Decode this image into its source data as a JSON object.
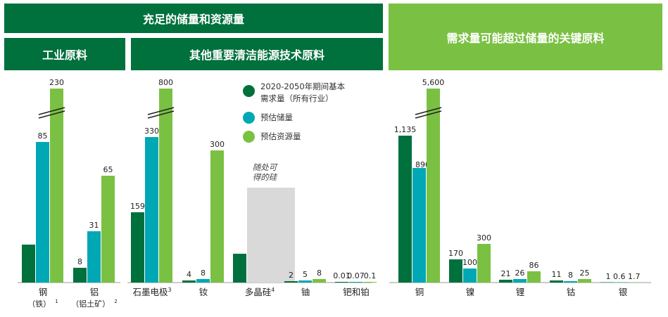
{
  "headers": {
    "top_left": "充足的储量和资源量",
    "industrial": "工业原料",
    "clean_energy": "其他重要清洁能源技术原料",
    "right": "需求量可能超过储量的关键原料"
  },
  "colors": {
    "header_dark": "#00703c",
    "header_light": "#7ac143",
    "demand": "#00703c",
    "reserves": "#00a7b5",
    "resources": "#7ac143",
    "silicon_note_box": "#d9d9d9"
  },
  "legend": [
    {
      "label_line1": "2020-2050年期间基本",
      "label_line2": "需求量（所有行业）",
      "color": "#00703c"
    },
    {
      "label_line1": "预估储量",
      "label_line2": "",
      "color": "#00a7b5"
    },
    {
      "label_line1": "预估资源量",
      "label_line2": "",
      "color": "#7ac143"
    }
  ],
  "chart_data": {
    "type": "bar",
    "series_names": [
      "2020-2050年期间基本需求量（所有行业）",
      "预估储量",
      "预估资源量"
    ],
    "groups": [
      {
        "category": "钢",
        "sub": "（铁）",
        "sup": "1",
        "values": [
          null,
          85,
          230
        ],
        "labels": [
          "",
          "85",
          "230"
        ],
        "demand_level": 0.19,
        "broken": true
      },
      {
        "category": "铝",
        "sub": "（铝土矿）",
        "sup": "2",
        "values": [
          8,
          31,
          65
        ],
        "labels": [
          "8",
          "31",
          "65"
        ]
      },
      {
        "category": "石墨电极",
        "sub": "",
        "sup": "3",
        "values": [
          159,
          330,
          800
        ],
        "labels": [
          "159",
          "330",
          "800"
        ],
        "broken": true
      },
      {
        "category": "钕",
        "sub": "",
        "sup": "",
        "values": [
          4,
          8,
          300
        ],
        "labels": [
          "4",
          "8",
          "300"
        ]
      },
      {
        "category": "多晶硅",
        "sub": "",
        "sup": "4",
        "values": [
          null,
          null,
          null
        ],
        "labels": [
          "",
          "",
          ""
        ],
        "demand_level": 0.25,
        "note": [
          "随处可",
          "得的硅"
        ]
      },
      {
        "category": "铀",
        "sub": "",
        "sup": "",
        "values": [
          2,
          5,
          8
        ],
        "labels": [
          "2",
          "5",
          "8"
        ]
      },
      {
        "category": "钯和铂",
        "sub": "",
        "sup": "",
        "values": [
          0.01,
          0.07,
          0.1
        ],
        "labels": [
          "0.01",
          "0.07",
          "0.1"
        ]
      },
      {
        "category": "铜",
        "sub": "",
        "sup": "",
        "values": [
          1135,
          890,
          5600
        ],
        "labels": [
          "1,135",
          "890",
          "5,600"
        ],
        "broken": true
      },
      {
        "category": "镍",
        "sub": "",
        "sup": "",
        "values": [
          170,
          100,
          300
        ],
        "labels": [
          "170",
          "100",
          "300"
        ]
      },
      {
        "category": "锂",
        "sub": "",
        "sup": "",
        "values": [
          21,
          26,
          86
        ],
        "labels": [
          "21",
          "26",
          "86"
        ]
      },
      {
        "category": "钴",
        "sub": "",
        "sup": "",
        "values": [
          11,
          8,
          25
        ],
        "labels": [
          "11",
          "8",
          "25"
        ]
      },
      {
        "category": "银",
        "sub": "",
        "sup": "",
        "values": [
          1,
          0.6,
          1.7
        ],
        "labels": [
          "1",
          "0.6",
          "1.7"
        ]
      }
    ]
  }
}
